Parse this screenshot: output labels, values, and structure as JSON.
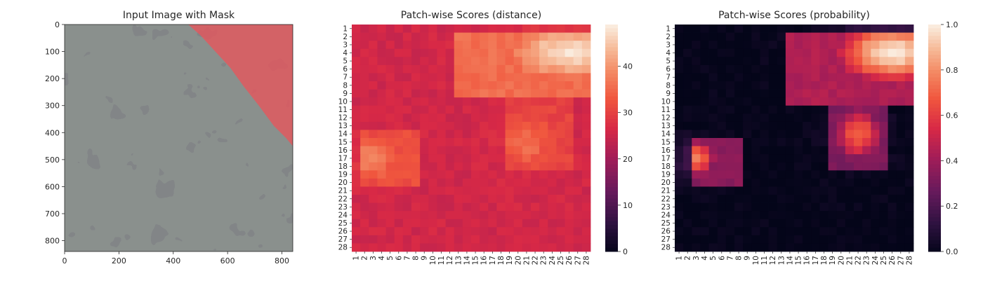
{
  "chart_data": [
    {
      "type": "image",
      "title": "Input Image with Mask",
      "xlim": [
        0,
        840
      ],
      "ylim": [
        840,
        0
      ],
      "xticks": [
        0,
        200,
        400,
        600,
        800
      ],
      "yticks": [
        0,
        100,
        200,
        300,
        400,
        500,
        600,
        700,
        800
      ],
      "xtick_labels": [
        "0",
        "200",
        "400",
        "600",
        "800"
      ],
      "ytick_labels": [
        "0",
        "100",
        "200",
        "300",
        "400",
        "500",
        "600",
        "700",
        "800"
      ],
      "mask_boundary": [
        [
          455,
          0
        ],
        [
          500,
          40
        ],
        [
          555,
          100
        ],
        [
          610,
          160
        ],
        [
          660,
          230
        ],
        [
          715,
          300
        ],
        [
          770,
          375
        ],
        [
          815,
          420
        ],
        [
          840,
          450
        ]
      ],
      "colors": {
        "background": "#8a908d",
        "spots": "#3a3b3d",
        "mask": "#e8545b"
      }
    },
    {
      "type": "heatmap",
      "title": "Patch-wise Scores (distance)",
      "rows": [
        "1",
        "2",
        "3",
        "4",
        "5",
        "6",
        "7",
        "8",
        "9",
        "10",
        "11",
        "12",
        "13",
        "14",
        "15",
        "16",
        "17",
        "18",
        "19",
        "20",
        "21",
        "22",
        "23",
        "24",
        "25",
        "26",
        "27",
        "28"
      ],
      "cols": [
        "1",
        "2",
        "3",
        "4",
        "5",
        "6",
        "7",
        "8",
        "9",
        "10",
        "11",
        "12",
        "13",
        "14",
        "15",
        "16",
        "17",
        "18",
        "19",
        "20",
        "21",
        "22",
        "23",
        "24",
        "25",
        "26",
        "27",
        "28"
      ],
      "vmin": 0,
      "vmax": 49,
      "colorbar_ticks": [
        0,
        10,
        20,
        30,
        40
      ],
      "colorbar_labels": [
        "0",
        "10",
        "20",
        "30",
        "40"
      ],
      "colormap": "rocket",
      "baseline": 26,
      "regions": [
        {
          "rows": [
            2,
            9
          ],
          "cols": [
            13,
            28
          ],
          "peak_row": 4,
          "peak_col": 26,
          "peak": 48
        },
        {
          "rows": [
            14,
            20
          ],
          "cols": [
            2,
            8
          ],
          "peak_row": 17,
          "peak_col": 3,
          "peak": 39
        },
        {
          "rows": [
            10,
            18
          ],
          "cols": [
            19,
            26
          ],
          "peak_row": 15,
          "peak_col": 21,
          "peak": 36
        }
      ]
    },
    {
      "type": "heatmap",
      "title": "Patch-wise Scores (probability)",
      "rows": [
        "1",
        "2",
        "3",
        "4",
        "5",
        "6",
        "7",
        "8",
        "9",
        "10",
        "11",
        "12",
        "13",
        "14",
        "15",
        "16",
        "17",
        "18",
        "19",
        "20",
        "21",
        "22",
        "23",
        "24",
        "25",
        "26",
        "27",
        "28"
      ],
      "cols": [
        "1",
        "2",
        "3",
        "4",
        "5",
        "6",
        "7",
        "8",
        "9",
        "10",
        "11",
        "12",
        "13",
        "14",
        "15",
        "16",
        "17",
        "18",
        "19",
        "20",
        "21",
        "22",
        "23",
        "24",
        "25",
        "26",
        "27",
        "28"
      ],
      "vmin": 0.0,
      "vmax": 1.0,
      "colorbar_ticks": [
        0.0,
        0.2,
        0.4,
        0.6,
        0.8,
        1.0
      ],
      "colorbar_labels": [
        "0.0",
        "0.2",
        "0.4",
        "0.6",
        "0.8",
        "1.0"
      ],
      "colormap": "rocket",
      "baseline": 0.0,
      "regions": [
        {
          "rows": [
            2,
            10
          ],
          "cols": [
            14,
            28
          ],
          "peak_row": 4,
          "peak_col": 26,
          "peak": 1.0
        },
        {
          "rows": [
            15,
            20
          ],
          "cols": [
            3,
            8
          ],
          "peak_row": 17,
          "peak_col": 3,
          "peak": 0.78
        },
        {
          "rows": [
            11,
            18
          ],
          "cols": [
            19,
            25
          ],
          "peak_row": 14,
          "peak_col": 22,
          "peak": 0.72
        }
      ]
    }
  ]
}
